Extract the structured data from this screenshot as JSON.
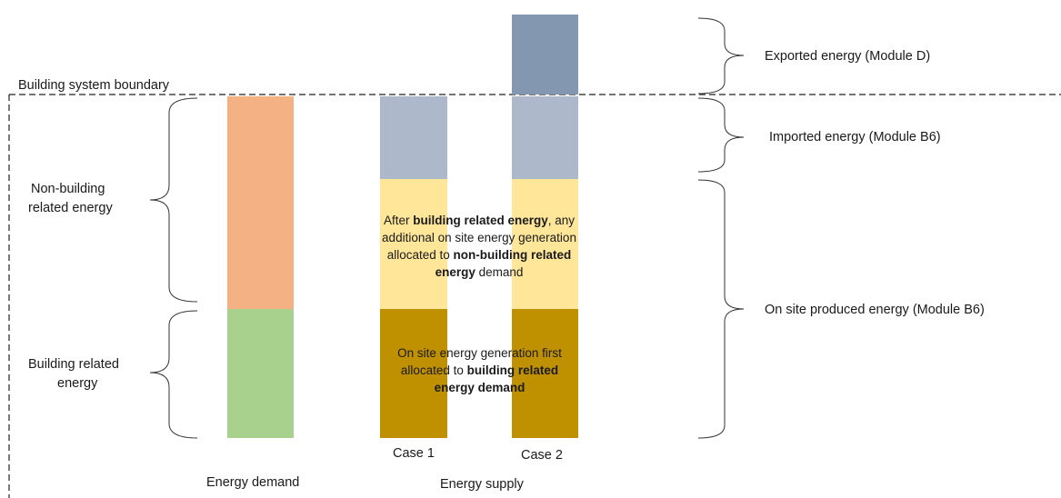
{
  "boundary_label": "Building system boundary",
  "left_labels": {
    "non_building": [
      "Non-building",
      "related energy"
    ],
    "building": [
      "Building related",
      "energy"
    ]
  },
  "right_labels": {
    "exported": "Exported energy (Module D)",
    "imported": "Imported energy (Module B6)",
    "onsite": "On site produced energy (Module B6)"
  },
  "bottom_labels": {
    "case1": "Case 1",
    "case2": "Case 2",
    "demand": "Energy demand",
    "supply": "Energy supply"
  },
  "annotations": {
    "after": [
      {
        "text": "After ",
        "bold": false
      },
      {
        "text": "building related energy",
        "bold": true
      },
      {
        "text": ", any additional on site energy generation allocated to ",
        "bold": false
      },
      {
        "text": "non-building related energy",
        "bold": true
      },
      {
        "text": " demand",
        "bold": false
      }
    ],
    "first": [
      {
        "text": "On site energy generation first allocated to ",
        "bold": false
      },
      {
        "text": "building related energy demand",
        "bold": true
      }
    ]
  },
  "colors": {
    "non_building_demand": "#F4B183",
    "building_demand": "#A9D18E",
    "imported": "#ADB9CA",
    "non_building_supply": "#FFE699",
    "building_supply": "#BF9000",
    "exported": "#8497B0",
    "line": "#333333"
  }
}
